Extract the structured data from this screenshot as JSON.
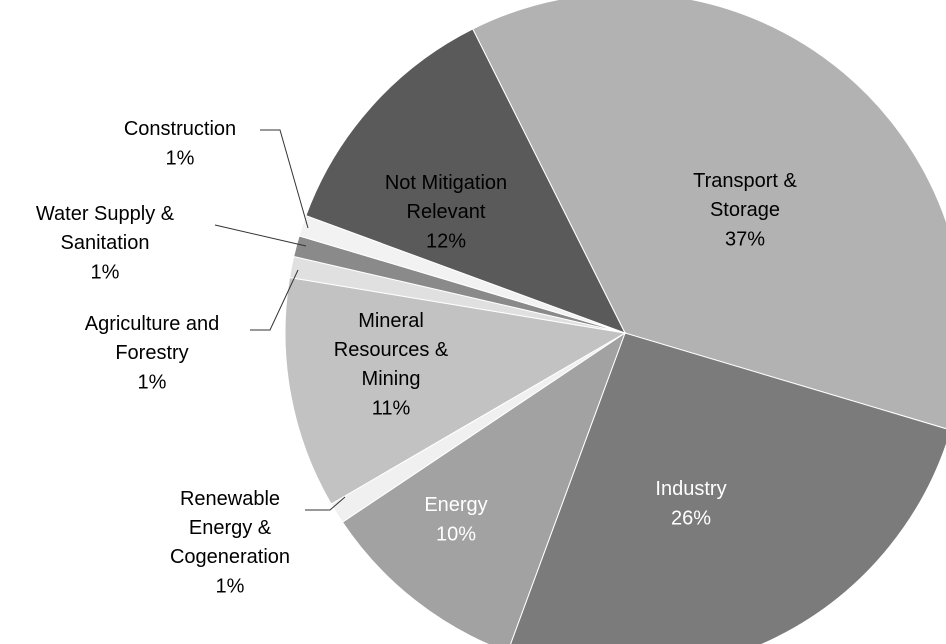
{
  "chart_data": {
    "type": "pie",
    "categories": [
      "Transport & Storage",
      "Industry",
      "Energy",
      "Renewable Energy & Cogeneration",
      "Mineral Resources & Mining",
      "Agriculture and Forestry",
      "Water Supply & Sanitation",
      "Construction",
      "Not Mitigation Relevant"
    ],
    "values": [
      37,
      26,
      10,
      1,
      11,
      1,
      1,
      1,
      12
    ],
    "value_labels": [
      "37%",
      "26%",
      "10%",
      "1%",
      "11%",
      "1%",
      "1%",
      "1%",
      "12%"
    ],
    "colors": [
      "#b2b2b2",
      "#7b7b7b",
      "#a2a2a2",
      "#f0f0f0",
      "#c2c2c2",
      "#e0e0e0",
      "#8a8a8a",
      "#f2f2f2",
      "#5a5a5a"
    ]
  }
}
